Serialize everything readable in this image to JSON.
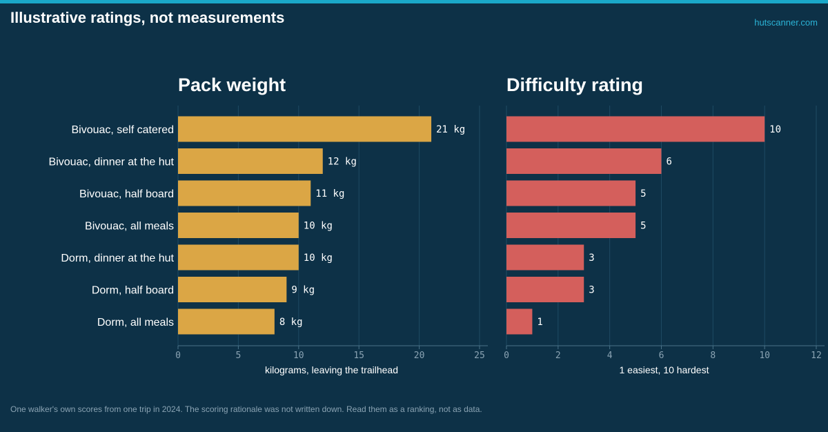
{
  "header": {
    "title": "Illustrative ratings, not measurements",
    "source": "hutscanner.com"
  },
  "footnote": "One walker's own scores from one trip in 2024. The scoring rationale was not written down. Read them as a ranking, not as data.",
  "colors": {
    "background": "#0d3147",
    "accent": "#1aa8c9",
    "pack": "#dba645",
    "difficulty": "#d45f5c"
  },
  "chart_data": [
    {
      "type": "bar",
      "orientation": "horizontal",
      "title": "Pack weight",
      "xlabel": "kilograms, leaving the trailhead",
      "ylabel": "",
      "categories": [
        "Bivouac, self catered",
        "Bivouac, dinner at the hut",
        "Bivouac, half board",
        "Bivouac, all meals",
        "Dorm, dinner at the hut",
        "Dorm, half board",
        "Dorm, all meals"
      ],
      "values": [
        21,
        12,
        11,
        10,
        10,
        9,
        8
      ],
      "value_labels": [
        "21 kg",
        "12 kg",
        "11 kg",
        "10 kg",
        "10 kg",
        "9 kg",
        "8 kg"
      ],
      "xlim": [
        0,
        25
      ],
      "xticks": [
        0,
        5,
        10,
        15,
        20,
        25
      ],
      "xtick_labels": [
        "0",
        "5",
        "10",
        "15",
        "20",
        "25"
      ],
      "grid": true,
      "color": "#dba645"
    },
    {
      "type": "bar",
      "orientation": "horizontal",
      "title": "Difficulty rating",
      "xlabel": "1 easiest, 10 hardest",
      "ylabel": "",
      "categories": [
        "Bivouac, self catered",
        "Bivouac, dinner at the hut",
        "Bivouac, half board",
        "Bivouac, all meals",
        "Dorm, dinner at the hut",
        "Dorm, half board",
        "Dorm, all meals"
      ],
      "values": [
        10,
        6,
        5,
        5,
        3,
        3,
        1
      ],
      "value_labels": [
        "10",
        "6",
        "5",
        "5",
        "3",
        "3",
        "1"
      ],
      "xlim": [
        0,
        12
      ],
      "xticks": [
        0,
        2,
        4,
        6,
        8,
        10,
        12
      ],
      "xtick_labels": [
        "0",
        "2",
        "4",
        "6",
        "8",
        "10",
        "12"
      ],
      "grid": true,
      "color": "#d45f5c"
    }
  ]
}
